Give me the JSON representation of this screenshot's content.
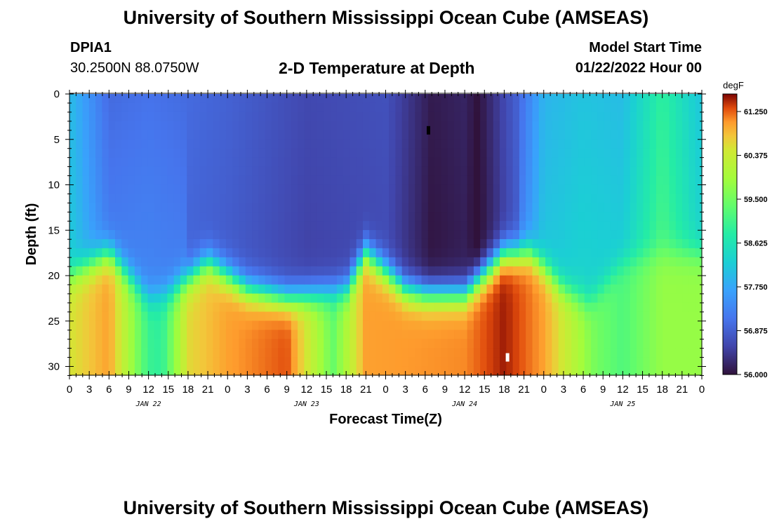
{
  "header": {
    "title": "University of Southern Mississippi Ocean Cube (AMSEAS)",
    "station_id": "DPIA1",
    "coordinates": "30.2500N  88.0750W",
    "subtitle": "2-D Temperature at Depth",
    "model_start_label": "Model Start Time",
    "model_start_value": "01/22/2022 Hour 00"
  },
  "footer": {
    "title": "University of Southern Mississippi Ocean Cube (AMSEAS)"
  },
  "chart_data": {
    "type": "heatmap",
    "title": "2-D Temperature at Depth",
    "xlabel": "Forecast Time(Z)",
    "ylabel": "Depth (ft)",
    "xlim": [
      0,
      96
    ],
    "ylim": [
      0,
      31
    ],
    "y_ticks": [
      0,
      5,
      10,
      15,
      20,
      25,
      30
    ],
    "x_tick_labels": [
      "0",
      "3",
      "6",
      "9",
      "12",
      "15",
      "18",
      "21",
      "0",
      "3",
      "6",
      "9",
      "12",
      "15",
      "18",
      "21",
      "0",
      "3",
      "6",
      "9",
      "12",
      "15",
      "18",
      "21",
      "0",
      "3",
      "6",
      "9",
      "12",
      "15",
      "18",
      "21",
      "0"
    ],
    "date_labels": [
      {
        "hour": 12,
        "label": "JAN 22"
      },
      {
        "hour": 36,
        "label": "JAN 23"
      },
      {
        "hour": 60,
        "label": "JAN 24"
      },
      {
        "hour": 84,
        "label": "JAN 25"
      }
    ],
    "colorbar": {
      "unit": "degF",
      "min": 56.0,
      "max": 61.6,
      "tick_labels": [
        "61.250",
        "60.375",
        "59.500",
        "58.625",
        "57.750",
        "56.875",
        "56.000"
      ],
      "tick_values": [
        61.25,
        60.375,
        59.5,
        58.625,
        57.75,
        56.875,
        56.0
      ]
    },
    "surface_temperature_profile": {
      "hours": [
        0,
        6,
        12,
        24,
        36,
        48,
        55,
        60,
        62,
        68,
        72,
        78,
        84,
        90,
        96
      ],
      "degF": [
        58.0,
        57.0,
        57.1,
        56.9,
        56.6,
        56.7,
        56.1,
        56.2,
        56.0,
        56.9,
        57.9,
        58.1,
        58.0,
        58.9,
        58.1
      ]
    },
    "warm_layer_top_depth_ft": {
      "hours": [
        0,
        6,
        12,
        15,
        21,
        27,
        33,
        42,
        45,
        51,
        54,
        60,
        66,
        70,
        75,
        79,
        84,
        90,
        96
      ],
      "depth": [
        20,
        17.5,
        22.5,
        22.0,
        18.5,
        21.5,
        22.5,
        21.5,
        17.5,
        21.5,
        22.0,
        22.0,
        17.5,
        17.5,
        21.5,
        23.0,
        18.5,
        17.5,
        17.5
      ]
    },
    "bottom_temperature_profile": {
      "hours": [
        0,
        6,
        12,
        14,
        18,
        24,
        33,
        40,
        45,
        60,
        66,
        72,
        80,
        84,
        90,
        96
      ],
      "degF": [
        60.5,
        61.0,
        59.0,
        58.9,
        60.6,
        61.0,
        61.3,
        59.4,
        61.0,
        61.1,
        61.5,
        61.0,
        59.5,
        59.2,
        59.8,
        59.8
      ]
    },
    "markers": [
      {
        "hour": 54.5,
        "depth": 4,
        "color": "#000000"
      },
      {
        "hour": 66.5,
        "depth": 29,
        "color": "#ffffff"
      }
    ]
  }
}
